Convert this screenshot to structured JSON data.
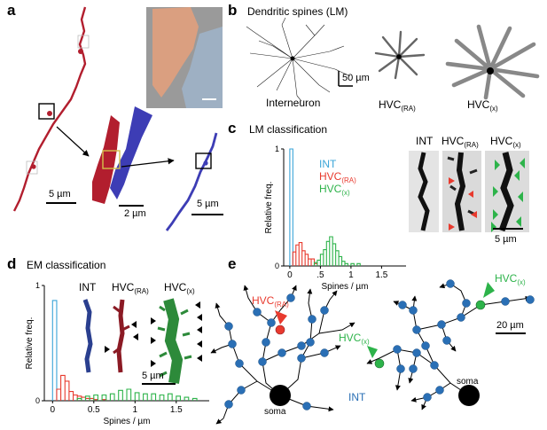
{
  "panel_labels": {
    "a": "a",
    "b": "b",
    "c": "c",
    "d": "d",
    "e": "e"
  },
  "panel_a": {
    "scalebar_red": "5 µm",
    "scalebar_em": "2 µm",
    "scalebar_blue": "5 µm",
    "colors": {
      "dendrite_red": "#b21e2e",
      "dendrite_blue": "#3d3db5",
      "em_orange": "#e8a07a",
      "em_blue": "#9fb3c8"
    }
  },
  "panel_b": {
    "title": "Dendritic spines (LM)",
    "scalebar": "50 µm",
    "labels": {
      "interneuron": "Interneuron",
      "hvc_ra_main": "HVC",
      "hvc_ra_sub": "(RA)",
      "hvc_x_main": "HVC",
      "hvc_x_sub": "(x)"
    }
  },
  "panel_c": {
    "title": "LM classification",
    "image_labels": {
      "int": "INT",
      "hvc_ra_main": "HVC",
      "hvc_ra_sub": "(RA)",
      "hvc_x_main": "HVC",
      "hvc_x_sub": "(x)"
    },
    "legend": {
      "int": "INT",
      "ra_main": "HVC",
      "ra_sub": "(RA)",
      "x_main": "HVC",
      "x_sub": "(x)"
    },
    "scalebar": "5 µm",
    "colors": {
      "int": "#3aa5d8",
      "ra": "#e83a2e",
      "x": "#2db34a"
    }
  },
  "panel_d": {
    "title": "EM classification",
    "image_labels": {
      "int": "INT",
      "hvc_ra_main": "HVC",
      "hvc_ra_sub": "(RA)",
      "hvc_x_main": "HVC",
      "hvc_x_sub": "(x)"
    },
    "scalebar": "5 µm"
  },
  "panel_e": {
    "labels": {
      "ra_main": "HVC",
      "ra_sub": "(RA)",
      "x1_main": "HVC",
      "x1_sub": "(x)",
      "x2_main": "HVC",
      "x2_sub": "(x)",
      "int": "INT",
      "soma_left": "soma",
      "soma_right": "soma"
    },
    "scalebar": "20 µm",
    "colors": {
      "node": "#2a6fb5",
      "ra": "#e83a2e",
      "x": "#2db34a"
    }
  },
  "chart_data": [
    {
      "type": "histogram",
      "panel": "c",
      "xlabel": "Spines / µm",
      "ylabel": "Relative freq.",
      "xlim": [
        -0.1,
        1.9
      ],
      "ylim": [
        0,
        1
      ],
      "xticks": [
        0,
        0.5,
        1,
        1.5
      ],
      "xtick_labels": [
        "0",
        ".5",
        "1",
        "1.5"
      ],
      "yticks": [
        0,
        1
      ],
      "ytick_labels": [
        "0",
        "1"
      ],
      "bin_width": 0.05,
      "series": [
        {
          "name": "INT",
          "color": "#3aa5d8",
          "bins": [
            [
              0.0,
              1.0
            ]
          ]
        },
        {
          "name": "HVC(RA)",
          "color": "#e83a2e",
          "bins": [
            [
              0.05,
              0.12
            ],
            [
              0.1,
              0.18
            ],
            [
              0.15,
              0.2
            ],
            [
              0.2,
              0.13
            ],
            [
              0.25,
              0.1
            ],
            [
              0.3,
              0.06
            ],
            [
              0.35,
              0.06
            ],
            [
              0.4,
              0.02
            ]
          ]
        },
        {
          "name": "HVC(x)",
          "color": "#2db34a",
          "bins": [
            [
              0.4,
              0.03
            ],
            [
              0.45,
              0.05
            ],
            [
              0.5,
              0.1
            ],
            [
              0.55,
              0.14
            ],
            [
              0.6,
              0.21
            ],
            [
              0.65,
              0.25
            ],
            [
              0.7,
              0.19
            ],
            [
              0.75,
              0.13
            ],
            [
              0.8,
              0.08
            ],
            [
              0.85,
              0.04
            ],
            [
              0.9,
              0.02
            ],
            [
              1.0,
              0.02
            ],
            [
              1.1,
              0.02
            ]
          ]
        }
      ]
    },
    {
      "type": "histogram",
      "panel": "d",
      "xlabel": "Spines / µm",
      "ylabel": "Relative freq.",
      "xlim": [
        -0.1,
        1.9
      ],
      "ylim": [
        0,
        1
      ],
      "xticks": [
        0,
        0.5,
        1,
        1.5
      ],
      "xtick_labels": [
        "0",
        "0.5",
        "1",
        "1.5"
      ],
      "yticks": [
        0,
        1
      ],
      "ytick_labels": [
        "0",
        "1"
      ],
      "bin_width": 0.05,
      "series": [
        {
          "name": "INT",
          "color": "#3aa5d8",
          "bins": [
            [
              0.0,
              0.87
            ]
          ]
        },
        {
          "name": "HVC(RA)",
          "color": "#e83a2e",
          "bins": [
            [
              0.05,
              0.1
            ],
            [
              0.1,
              0.22
            ],
            [
              0.15,
              0.17
            ],
            [
              0.2,
              0.08
            ],
            [
              0.25,
              0.05
            ],
            [
              0.3,
              0.04
            ],
            [
              0.35,
              0.03
            ],
            [
              0.4,
              0.02
            ],
            [
              0.45,
              0.02
            ],
            [
              0.5,
              0.01
            ],
            [
              0.6,
              0.01
            ]
          ]
        },
        {
          "name": "HVC(x)",
          "color": "#2db34a",
          "bins": [
            [
              0.3,
              0.02
            ],
            [
              0.4,
              0.04
            ],
            [
              0.5,
              0.05
            ],
            [
              0.6,
              0.05
            ],
            [
              0.7,
              0.06
            ],
            [
              0.8,
              0.09
            ],
            [
              0.9,
              0.1
            ],
            [
              1.0,
              0.07
            ],
            [
              1.1,
              0.06
            ],
            [
              1.2,
              0.06
            ],
            [
              1.3,
              0.05
            ],
            [
              1.4,
              0.06
            ],
            [
              1.5,
              0.04
            ],
            [
              1.6,
              0.03
            ],
            [
              1.7,
              0.02
            ]
          ]
        }
      ]
    }
  ]
}
